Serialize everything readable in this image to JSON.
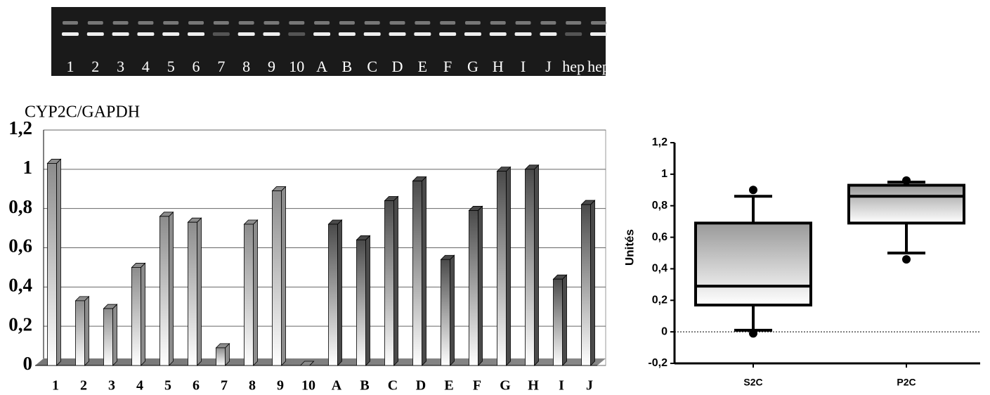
{
  "gel": {
    "lanes": [
      "1",
      "2",
      "3",
      "4",
      "5",
      "6",
      "7",
      "8",
      "9",
      "10",
      "A",
      "B",
      "C",
      "D",
      "E",
      "F",
      "G",
      "H",
      "I",
      "J",
      "hep",
      "hep"
    ]
  },
  "chart_data": [
    {
      "type": "bar",
      "title": "CYP2C/GAPDH",
      "categories": [
        "1",
        "2",
        "3",
        "4",
        "5",
        "6",
        "7",
        "8",
        "9",
        "10",
        "A",
        "B",
        "C",
        "D",
        "E",
        "F",
        "G",
        "H",
        "I",
        "J"
      ],
      "values": [
        1.03,
        0.33,
        0.29,
        0.5,
        0.76,
        0.73,
        0.09,
        0.72,
        0.89,
        0,
        0.72,
        0.64,
        0.84,
        0.94,
        0.54,
        0.79,
        0.99,
        1.0,
        0.44,
        0.82
      ],
      "colors": [
        "#8c8c8c",
        "#8c8c8c",
        "#8c8c8c",
        "#8c8c8c",
        "#8c8c8c",
        "#8c8c8c",
        "#8c8c8c",
        "#8c8c8c",
        "#8c8c8c",
        "#8c8c8c",
        "#4a4a4a",
        "#4a4a4a",
        "#4a4a4a",
        "#4a4a4a",
        "#4a4a4a",
        "#4a4a4a",
        "#4a4a4a",
        "#4a4a4a",
        "#4a4a4a",
        "#4a4a4a"
      ],
      "ylim": [
        0,
        1.2
      ],
      "yticks": [
        0,
        {
          "value": 0.2,
          "label": "0,2"
        },
        {
          "value": 0.4,
          "label": "0,4"
        },
        {
          "value": 0.6,
          "label": "0,6"
        },
        {
          "value": 0.8,
          "label": "0,8"
        },
        1,
        {
          "value": 1.2,
          "label": "1,2"
        }
      ],
      "grid": true
    },
    {
      "type": "box",
      "ylabel": "Unités",
      "categories": [
        "S2C",
        "P2C"
      ],
      "boxes": [
        {
          "whisker_low": 0.01,
          "q1": 0.17,
          "median": 0.29,
          "q3": 0.69,
          "whisker_high": 0.86,
          "outliers": [
            0.9,
            -0.01
          ]
        },
        {
          "whisker_low": 0.5,
          "q1": 0.69,
          "median": 0.86,
          "q3": 0.93,
          "whisker_high": 0.95,
          "outliers": [
            0.96,
            0.46
          ]
        }
      ],
      "color": "#555555",
      "ylim": [
        -0.2,
        1.2
      ],
      "yticks": [
        {
          "value": -0.2,
          "label": "-0,2"
        },
        0,
        {
          "value": 0.2,
          "label": "0,2"
        },
        {
          "value": 0.4,
          "label": "0,4"
        },
        {
          "value": 0.6,
          "label": "0,6"
        },
        {
          "value": 0.8,
          "label": "0,8"
        },
        1,
        {
          "value": 1.2,
          "label": "1,2"
        }
      ],
      "zero_line": true
    }
  ]
}
